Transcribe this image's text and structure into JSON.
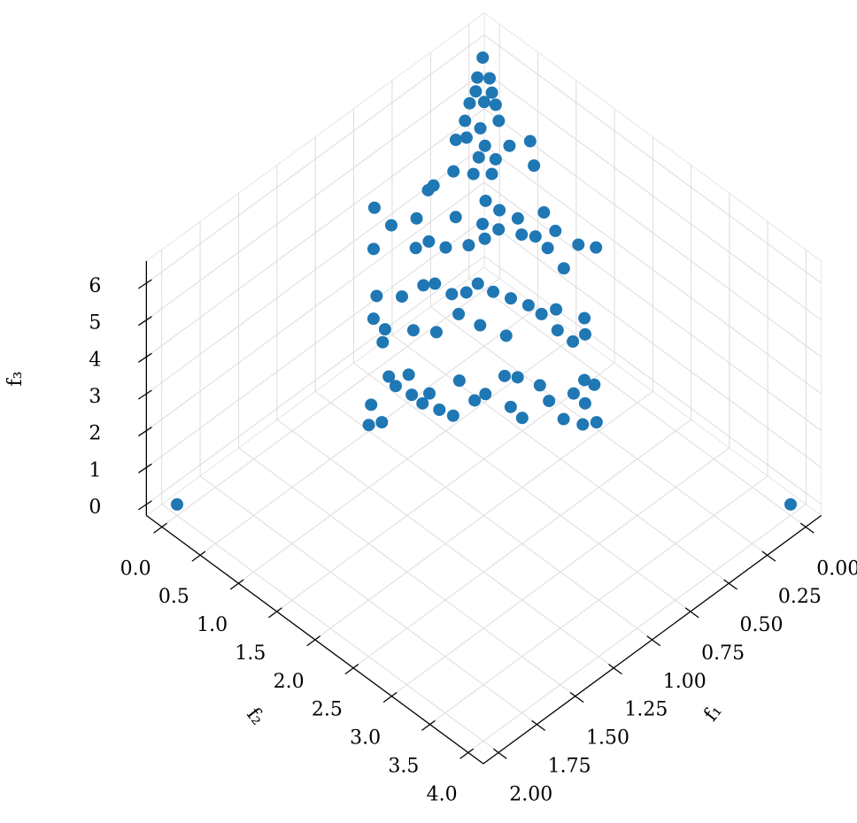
{
  "chart_data": {
    "type": "scatter3d",
    "xlabel": "f₁",
    "ylabel": "f₂",
    "zlabel": "f₃",
    "color": "#1f77b4",
    "grid": true,
    "xlim": [
      -0.1,
      2.1
    ],
    "ylim": [
      -0.2,
      4.2
    ],
    "zlim": [
      -0.3,
      6.6
    ],
    "xticks": [
      {
        "value": 0,
        "label": "0.00"
      },
      0.25,
      {
        "value": 0.5,
        "label": "0.50"
      },
      0.75,
      {
        "value": 1,
        "label": "1.00"
      },
      1.25,
      {
        "value": 1.5,
        "label": "1.50"
      },
      1.75,
      {
        "value": 2,
        "label": "2.00"
      }
    ],
    "yticks": [
      {
        "value": 0,
        "label": "0.0"
      },
      0.5,
      {
        "value": 1,
        "label": "1.0"
      },
      1.5,
      {
        "value": 2,
        "label": "2.0"
      },
      2.5,
      {
        "value": 3,
        "label": "3.0"
      },
      3.5,
      {
        "value": 4,
        "label": "4.0"
      }
    ],
    "zticks": [
      0,
      1,
      2,
      3,
      4,
      5,
      6
    ],
    "x": [
      0.03,
      0.1,
      0.06,
      0.14,
      0.09,
      0.14,
      0.19,
      0.11,
      0.25,
      0.22,
      0.14,
      0.33,
      0.29,
      0.25,
      0.17,
      0.09,
      0.3,
      0.25,
      0.14,
      0.42,
      0.36,
      0.3,
      0.52,
      0.55,
      0.77,
      0.76,
      0.66,
      0.53,
      0.39,
      0.46,
      0.37,
      0.33,
      0.23,
      0.24,
      0.88,
      0.74,
      0.68,
      0.64,
      0.56,
      0.49,
      0.42,
      0.36,
      0.32,
      0.31,
      0.2,
      0.15,
      0.31,
      0.99,
      0.91,
      0.81,
      0.77,
      0.74,
      0.69,
      0.63,
      0.6,
      0.56,
      0.52,
      0.5,
      0.44,
      0.37,
      1.06,
      1.05,
      1.09,
      0.96,
      0.89,
      0.77,
      0.73,
      0.67,
      0.49,
      0.47,
      0.41,
      1.29,
      1.35,
      1.3,
      1.16,
      1.16,
      1.09,
      1.13,
      1.12,
      1.07,
      1.08,
      1.05,
      0.94,
      0.94,
      0.89,
      0.78,
      0.84,
      0.74,
      0.83,
      0.69,
      0.7,
      0.7,
      0.6,
      0.53,
      0.59,
      0.51,
      0.6,
      0.65,
      2,
      0
    ],
    "y": [
      0.04,
      0.11,
      0.19,
      0.17,
      0.28,
      0.28,
      0.19,
      0.37,
      0.25,
      0.39,
      0.47,
      0.29,
      0.35,
      0.51,
      0.67,
      0.78,
      0.53,
      0.65,
      0.93,
      0.44,
      0.58,
      0.7,
      0.38,
      0.37,
      0.11,
      0.31,
      0.44,
      0.69,
      0.8,
      0.9,
      0.94,
      1.1,
      1.24,
      1.41,
      0.32,
      0.59,
      0.64,
      0.78,
      0.92,
      0.99,
      1.03,
      1.21,
      1.31,
      1.45,
      1.63,
      1.76,
      1.66,
      0.58,
      0.75,
      0.83,
      0.9,
      1.06,
      1.15,
      1.18,
      1.32,
      1.47,
      1.62,
      1.75,
      1.82,
      2.05,
      0.68,
      0.81,
      0.86,
      1.0,
      1.16,
      1.21,
      1.41,
      1.63,
      1.94,
      2.1,
      2.14,
      1.11,
      1.2,
      1.27,
      1.08,
      1.17,
      1.2,
      1.32,
      1.44,
      1.43,
      1.58,
      1.7,
      1.56,
      1.76,
      1.8,
      1.83,
      2.03,
      1.92,
      2.16,
      2.11,
      2.25,
      2.44,
      2.37,
      2.37,
      2.5,
      2.46,
      2.67,
      2.59,
      0,
      4
    ],
    "z": [
      6.15,
      5.93,
      5.91,
      5.77,
      5.75,
      5.65,
      5.63,
      5.62,
      5.43,
      5.35,
      5.43,
      5.22,
      5.25,
      5.15,
      5.15,
      5.2,
      5.02,
      5.0,
      4.92,
      4.87,
      4.83,
      4.83,
      4.7,
      4.65,
      4.45,
      4.25,
      4.33,
      4.35,
      4.53,
      4.27,
      4.43,
      4.33,
      4.4,
      4.19,
      3.99,
      4.0,
      4.07,
      4.0,
      4.03,
      4.1,
      4.2,
      4.15,
      4.13,
      4.0,
      4.03,
      4.0,
      3.77,
      3.45,
      3.45,
      3.57,
      3.6,
      3.47,
      3.5,
      3.6,
      3.5,
      3.43,
      3.35,
      3.25,
      3.3,
      3.2,
      3.2,
      3.08,
      2.93,
      3.07,
      3.05,
      3.25,
      3.13,
      3.0,
      3.07,
      2.95,
      3.02,
      2.23,
      2.0,
      2.03,
      2.55,
      2.43,
      2.57,
      2.33,
      2.25,
      2.35,
      2.17,
      2.1,
      2.5,
      2.27,
      2.35,
      2.55,
      2.2,
      2.53,
      2.07,
      2.45,
      2.27,
      2.07,
      2.35,
      2.5,
      2.25,
      2.45,
      2.03,
      2.0,
      0,
      0
    ]
  }
}
